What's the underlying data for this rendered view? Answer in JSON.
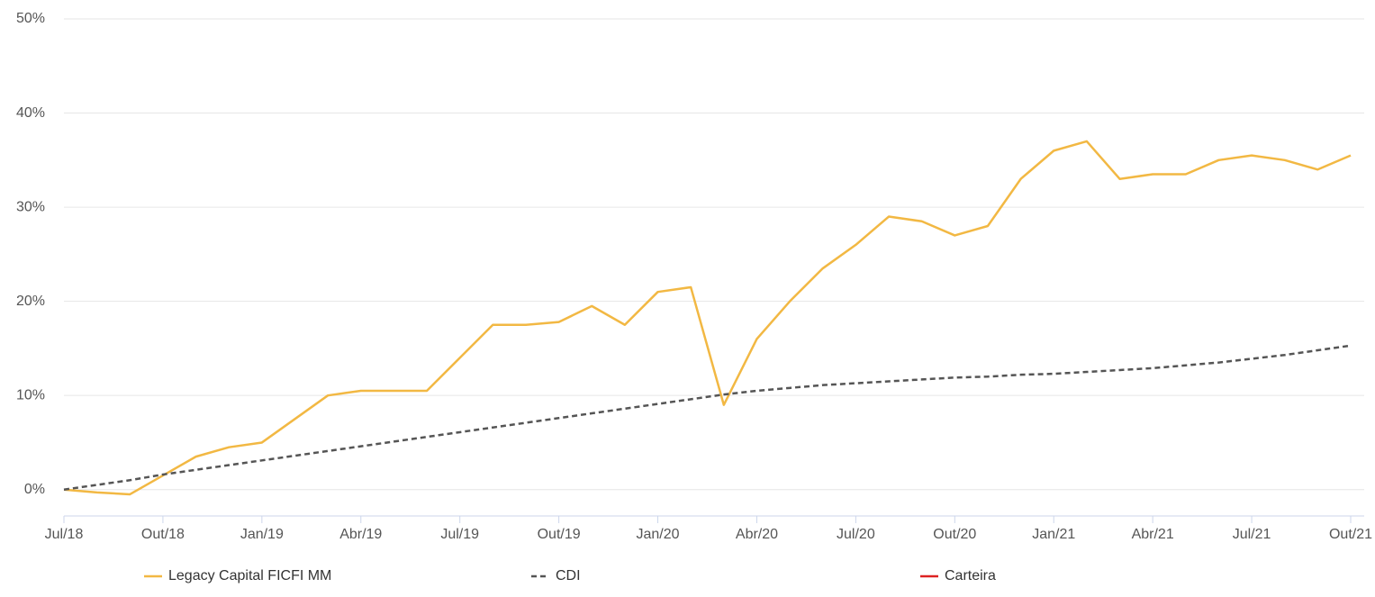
{
  "chart_data": {
    "type": "line",
    "categories": [
      "Jul/18",
      null,
      null,
      "Out/18",
      null,
      null,
      "Jan/19",
      null,
      null,
      "Abr/19",
      null,
      null,
      "Jul/19",
      null,
      null,
      "Out/19",
      null,
      null,
      "Jan/20",
      null,
      null,
      "Abr/20",
      null,
      null,
      "Jul/20",
      null,
      null,
      "Out/20",
      null,
      null,
      "Jan/21",
      null,
      null,
      "Abr/21",
      null,
      null,
      "Jul/21",
      null,
      null,
      "Out/21"
    ],
    "series": [
      {
        "name": "Legacy Capital FICFI MM",
        "color": "#f2b843",
        "dash": false,
        "values": [
          0,
          -0.3,
          -0.5,
          1.5,
          3.5,
          4.5,
          5,
          7.5,
          10,
          10.5,
          10.5,
          10.5,
          14,
          17.5,
          17.5,
          17.8,
          19.5,
          17.5,
          21,
          21.5,
          9,
          16,
          20,
          23.5,
          26,
          29,
          28.5,
          27,
          28,
          33,
          36,
          37,
          33,
          33.5,
          33.5,
          35,
          35.5,
          35,
          34,
          35.5
        ]
      },
      {
        "name": "CDI",
        "color": "#555555",
        "dash": true,
        "values": [
          0,
          0.5,
          1,
          1.6,
          2.1,
          2.6,
          3.1,
          3.6,
          4.1,
          4.6,
          5.1,
          5.6,
          6.1,
          6.6,
          7.1,
          7.6,
          8.1,
          8.6,
          9.1,
          9.6,
          10.1,
          10.5,
          10.8,
          11.1,
          11.3,
          11.5,
          11.7,
          11.9,
          12.0,
          12.2,
          12.3,
          12.5,
          12.7,
          12.9,
          13.2,
          13.5,
          13.9,
          14.3,
          14.8,
          15.3
        ]
      },
      {
        "name": "Carteira",
        "color": "#dd2222",
        "dash": false,
        "values": [
          null,
          null,
          null,
          null,
          null,
          null,
          null,
          null,
          null,
          null,
          null,
          null,
          null,
          null,
          null,
          null,
          null,
          null,
          null,
          null,
          null,
          null,
          null,
          null,
          null,
          null,
          null,
          null,
          null,
          null,
          null,
          null,
          null,
          null,
          null,
          null,
          null,
          null,
          null,
          null
        ]
      }
    ],
    "ylim": [
      -2.8,
      50
    ],
    "yticks": [
      {
        "value": 0,
        "label": "0%"
      },
      {
        "value": 10,
        "label": "10%"
      },
      {
        "value": 20,
        "label": "20%"
      },
      {
        "value": 30,
        "label": "30%"
      },
      {
        "value": 40,
        "label": "40%"
      },
      {
        "value": 50,
        "label": "50%"
      }
    ],
    "grid": true,
    "legend": "bottom"
  }
}
